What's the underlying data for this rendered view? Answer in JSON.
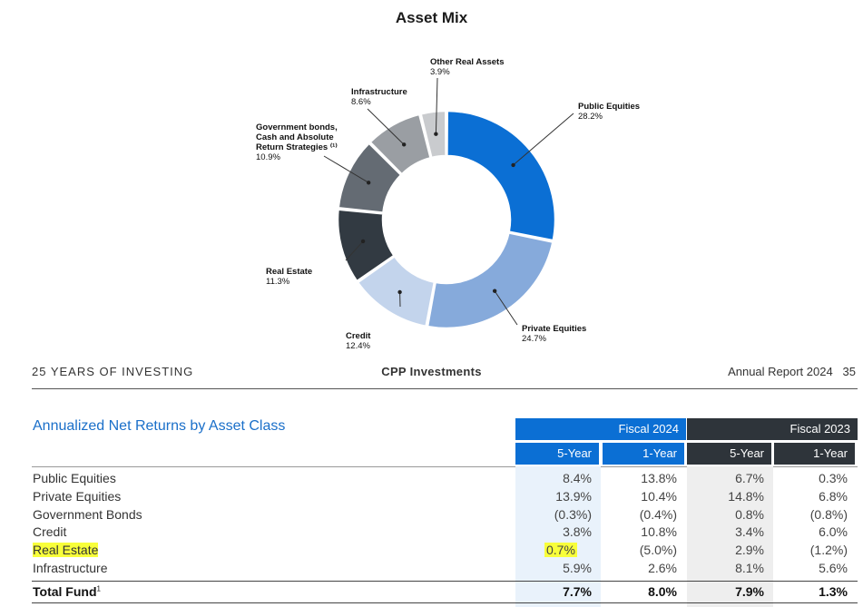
{
  "chart_data": {
    "type": "pie",
    "title": "Asset Mix",
    "categories": [
      "Public Equities",
      "Private Equities",
      "Credit",
      "Real Estate",
      "Government bonds, Cash and Absolute Return Strategies",
      "Infrastructure",
      "Other Real Assets"
    ],
    "values": [
      28.2,
      24.7,
      12.4,
      11.3,
      10.9,
      8.6,
      3.9
    ],
    "labels": [
      {
        "lines": [
          "Public Equities"
        ],
        "value": "28.2%"
      },
      {
        "lines": [
          "Private Equities"
        ],
        "value": "24.7%"
      },
      {
        "lines": [
          "Credit"
        ],
        "value": "12.4%"
      },
      {
        "lines": [
          "Real Estate"
        ],
        "value": "11.3%"
      },
      {
        "lines": [
          "Government bonds,",
          "Cash and Absolute",
          "Return Strategies ⁽¹⁾"
        ],
        "value": "10.9%"
      },
      {
        "lines": [
          "Infrastructure"
        ],
        "value": "8.6%"
      },
      {
        "lines": [
          "Other Real Assets"
        ],
        "value": "3.9%"
      }
    ],
    "colors": [
      "#0b6fd4",
      "#86aadb",
      "#c3d4ec",
      "#323a42",
      "#646b73",
      "#9a9ea3",
      "#c9cbce"
    ]
  },
  "footer": {
    "left": "25 YEARS OF INVESTING",
    "center": "CPP Investments",
    "right": "Annual Report 2024   35"
  },
  "table": {
    "title": "Annualized Net Returns by Asset Class",
    "groups": [
      {
        "label": "Fiscal 2024",
        "color": "#0b6fd4"
      },
      {
        "label": "Fiscal 2023",
        "color": "#2e343a"
      }
    ],
    "subheaders": [
      "5-Year",
      "1-Year",
      "5-Year",
      "1-Year"
    ],
    "rows": [
      {
        "label": "Public Equities",
        "values": [
          "8.4%",
          "13.8%",
          "6.7%",
          "0.3%"
        ]
      },
      {
        "label": "Private Equities",
        "values": [
          "13.9%",
          "10.4%",
          "14.8%",
          "6.8%"
        ]
      },
      {
        "label": "Government Bonds",
        "values": [
          "(0.3%)",
          "(0.4%)",
          "0.8%",
          "(0.8%)"
        ]
      },
      {
        "label": "Credit",
        "values": [
          "3.8%",
          "10.8%",
          "3.4%",
          "6.0%"
        ]
      },
      {
        "label": "Real Estate",
        "values": [
          "0.7%",
          "(5.0%)",
          "2.9%",
          "(1.2%)"
        ],
        "highlight": true
      },
      {
        "label": "Infrastructure",
        "values": [
          "5.9%",
          "2.6%",
          "8.1%",
          "5.6%"
        ]
      }
    ],
    "total": {
      "label": "Total Fund",
      "sup": "1",
      "values": [
        "7.7%",
        "8.0%",
        "7.9%",
        "1.3%"
      ]
    }
  }
}
